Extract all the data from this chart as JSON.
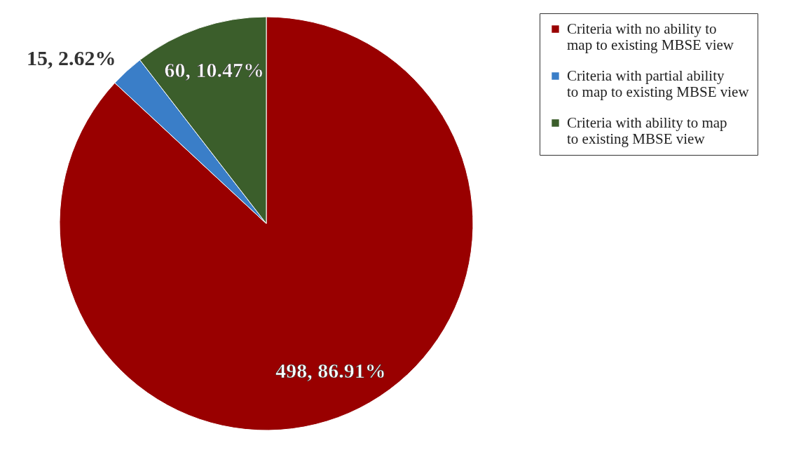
{
  "chart_data": {
    "type": "pie",
    "categories": [
      "Criteria with no ability to map to existing MBSE view",
      "Criteria with partial ability to map to existing MBSE view",
      "Criteria with ability to map to existing MBSE view"
    ],
    "values": [
      498,
      15,
      60
    ],
    "colors": [
      "#990000",
      "#3a7ec8",
      "#3b5e2b"
    ],
    "value_labels": [
      "498, 86.91%",
      "15, 2.62%",
      "60, 10.47%"
    ],
    "legend": "right"
  }
}
